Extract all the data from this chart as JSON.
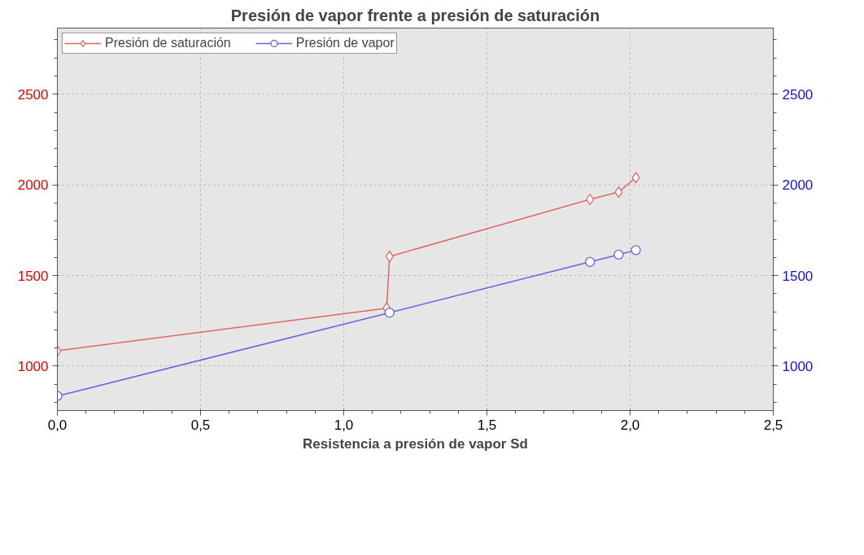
{
  "chart_data": {
    "type": "line",
    "title": "Presión de vapor frente a presión de saturación",
    "xlabel": "Resistencia a presión de vapor Sd",
    "xlim": [
      0,
      2.5
    ],
    "xticks": [
      {
        "value": 0,
        "label": "0,0"
      },
      {
        "value": 0.5,
        "label": "0,5"
      },
      {
        "value": 1,
        "label": "1,0"
      },
      {
        "value": 1.5,
        "label": "1,5"
      },
      {
        "value": 2,
        "label": "2,0"
      },
      {
        "value": 2.5,
        "label": "2,5"
      }
    ],
    "ylim": [
      755,
      2865
    ],
    "yticks": [
      1000,
      1500,
      2000,
      2500
    ],
    "y2lim": [
      755,
      2865
    ],
    "y2ticks": [
      1000,
      1500,
      2000,
      2500
    ],
    "grid": true,
    "legend": "top left",
    "line_style": "solid",
    "series": [
      {
        "name": "Presión de saturación",
        "color": "#e06666",
        "marker": "diamond",
        "x": [
          0,
          1.15,
          1.16,
          1.86,
          1.96,
          2.02
        ],
        "values": [
          1085,
          1320,
          1605,
          1920,
          1960,
          2040
        ]
      },
      {
        "name": "Presión de vapor",
        "color": "#6666e0",
        "marker": "circle",
        "x": [
          0,
          1.16,
          1.86,
          1.96,
          2.02
        ],
        "values": [
          835,
          1295,
          1575,
          1615,
          1640
        ]
      }
    ]
  }
}
